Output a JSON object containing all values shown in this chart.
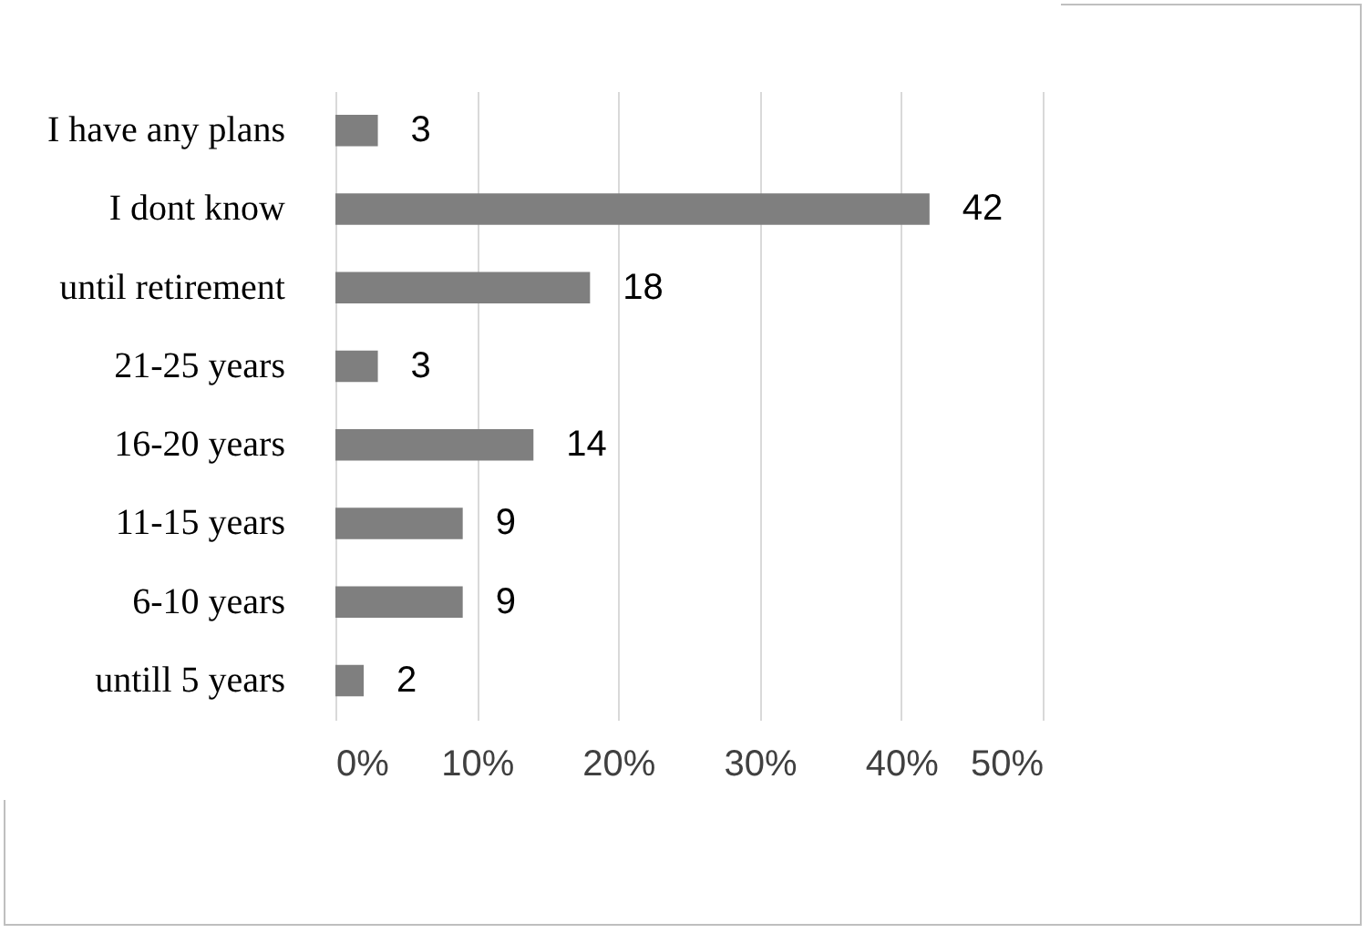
{
  "chart_data": {
    "type": "bar",
    "orientation": "horizontal",
    "categories": [
      "I  have any plans",
      "I dont know",
      "until retirement",
      "21-25 years",
      "16-20 years",
      "11-15 years",
      "6-10 years",
      "untill 5 years"
    ],
    "values": [
      3,
      42,
      18,
      3,
      14,
      9,
      9,
      2
    ],
    "color": "#7f7f7f",
    "xlim": [
      0,
      50
    ],
    "xticks": [
      {
        "value": 0,
        "label": "0%"
      },
      {
        "value": 10,
        "label": "10%"
      },
      {
        "value": 20,
        "label": "20%"
      },
      {
        "value": 30,
        "label": "30%"
      },
      {
        "value": 40,
        "label": "40%"
      },
      {
        "value": 50,
        "label": "50%"
      }
    ],
    "grid": "x",
    "data_labels": true
  }
}
